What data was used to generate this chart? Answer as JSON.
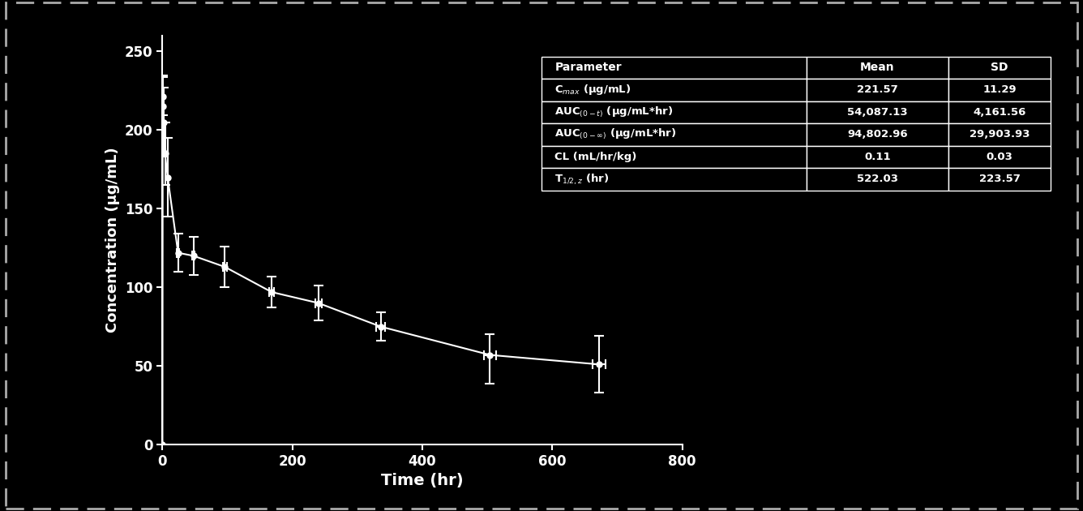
{
  "time_points": [
    0,
    0.5,
    1,
    2,
    4,
    8,
    24,
    48,
    96,
    168,
    240,
    336,
    504,
    672
  ],
  "concentration_mean": [
    0,
    221.57,
    215,
    205,
    185,
    170,
    122,
    120,
    113,
    97,
    90,
    75,
    57,
    51
  ],
  "concentration_sd_upper": [
    0,
    12,
    20,
    22,
    20,
    25,
    12,
    12,
    13,
    10,
    11,
    9,
    13,
    18
  ],
  "concentration_sd_lower": [
    0,
    12,
    20,
    22,
    20,
    25,
    12,
    12,
    13,
    10,
    11,
    9,
    18,
    18
  ],
  "time_sd": [
    0,
    0,
    0,
    0,
    0,
    0,
    2,
    2,
    3,
    4,
    5,
    7,
    9,
    10
  ],
  "xlabel": "Time (hr)",
  "ylabel": "Concentration (μg/mL)",
  "xlim": [
    0,
    800
  ],
  "ylim": [
    0,
    260
  ],
  "xticks": [
    0,
    200,
    400,
    600,
    800
  ],
  "yticks": [
    0,
    50,
    100,
    150,
    200,
    250
  ],
  "background_color": "#000000",
  "line_color": "#ffffff",
  "marker_color": "#ffffff",
  "axis_color": "#ffffff",
  "text_color": "#ffffff",
  "table_headers": [
    "Parameter",
    "Mean",
    "SD"
  ],
  "table_rows": [
    [
      "C$_{max}$ (μg/mL)",
      "221.57",
      "11.29"
    ],
    [
      "AUC$_{(0-t)}$ (μg/mL*hr)",
      "54,087.13",
      "4,161.56"
    ],
    [
      "AUC$_{(0-∞)}$ (μg/mL*hr)",
      "94,802.96",
      "29,903.93"
    ],
    [
      "CL (mL/hr/kg)",
      "0.11",
      "0.03"
    ],
    [
      "T$_{1/2,z}$ (hr)",
      "522.03",
      "223.57"
    ]
  ],
  "border_color": "#ffffff",
  "dashed_border_color": "#aaaaaa",
  "fig_width": 13.36,
  "fig_height": 6.3,
  "dpi": 100
}
